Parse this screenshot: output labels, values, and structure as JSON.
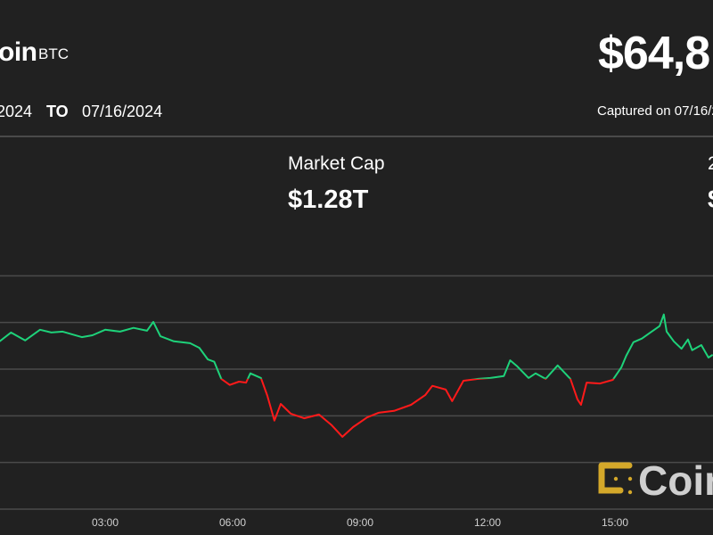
{
  "header": {
    "asset_name": "oin",
    "ticker": "BTC",
    "from_date": "2024",
    "to_label": "TO",
    "to_date": "07/16/2024",
    "price": "$64,8",
    "captured": "Captured on 07/16/2"
  },
  "stats": [
    {
      "label": "Market Cap",
      "value": "$1.28T"
    },
    {
      "label": "2",
      "value": "$"
    }
  ],
  "watermark": {
    "text": "Coin"
  },
  "colors": {
    "background": "#212121",
    "up": "#1ed27a",
    "down": "#ff1a1a",
    "grid": "#4a4a4a",
    "logo": "#d4a82a"
  },
  "chart_data": {
    "type": "line",
    "title": "",
    "xlabel": "",
    "ylabel": "",
    "grid": true,
    "x_ticks": [
      "03:00",
      "06:00",
      "09:00",
      "12:00",
      "15:00"
    ],
    "baseline": 64280,
    "color_rule": "green above baseline, red below",
    "ylim": [
      61470,
      67510
    ],
    "series": [
      {
        "x": [
          "00:31",
          "00:47",
          "01:07",
          "01:28",
          "01:44",
          "02:00",
          "02:27",
          "02:42",
          "03:00",
          "03:21",
          "03:40",
          "03:59",
          "04:08",
          "04:18",
          "04:37",
          "05:00",
          "05:13",
          "05:25",
          "05:34",
          "05:44",
          "05:56",
          "06:09",
          "06:19",
          "06:25",
          "06:40",
          "06:49",
          "06:59",
          "07:08",
          "07:22",
          "07:41",
          "08:02",
          "08:20",
          "08:35",
          "08:50",
          "09:10",
          "09:26",
          "09:48",
          "10:12",
          "10:32",
          "10:42",
          "11:01",
          "11:10",
          "11:26",
          "11:47",
          "12:04",
          "12:23",
          "12:32",
          "12:42",
          "12:58",
          "13:08",
          "13:22",
          "13:39",
          "13:57",
          "14:07",
          "14:12",
          "14:20",
          "14:39",
          "14:57",
          "15:09",
          "15:16",
          "15:26",
          "15:38",
          "15:50",
          "16:03",
          "16:09",
          "16:13",
          "16:23",
          "16:34",
          "16:43",
          "16:49",
          "17:02",
          "17:12",
          "17:18"
        ],
        "values": [
          65090,
          65280,
          65110,
          65340,
          65280,
          65300,
          65180,
          65220,
          65340,
          65300,
          65380,
          65320,
          65510,
          65200,
          65090,
          65050,
          64950,
          64700,
          64650,
          64280,
          64150,
          64220,
          64200,
          64400,
          64300,
          63920,
          63380,
          63740,
          63530,
          63430,
          63510,
          63280,
          63030,
          63240,
          63450,
          63550,
          63590,
          63720,
          63930,
          64130,
          64050,
          63800,
          64240,
          64280,
          64300,
          64340,
          64680,
          64550,
          64300,
          64400,
          64280,
          64570,
          64280,
          63840,
          63720,
          64200,
          64180,
          64260,
          64530,
          64780,
          65070,
          65150,
          65280,
          65420,
          65670,
          65300,
          65090,
          64930,
          65130,
          64900,
          65010,
          64740,
          64800
        ]
      }
    ]
  }
}
